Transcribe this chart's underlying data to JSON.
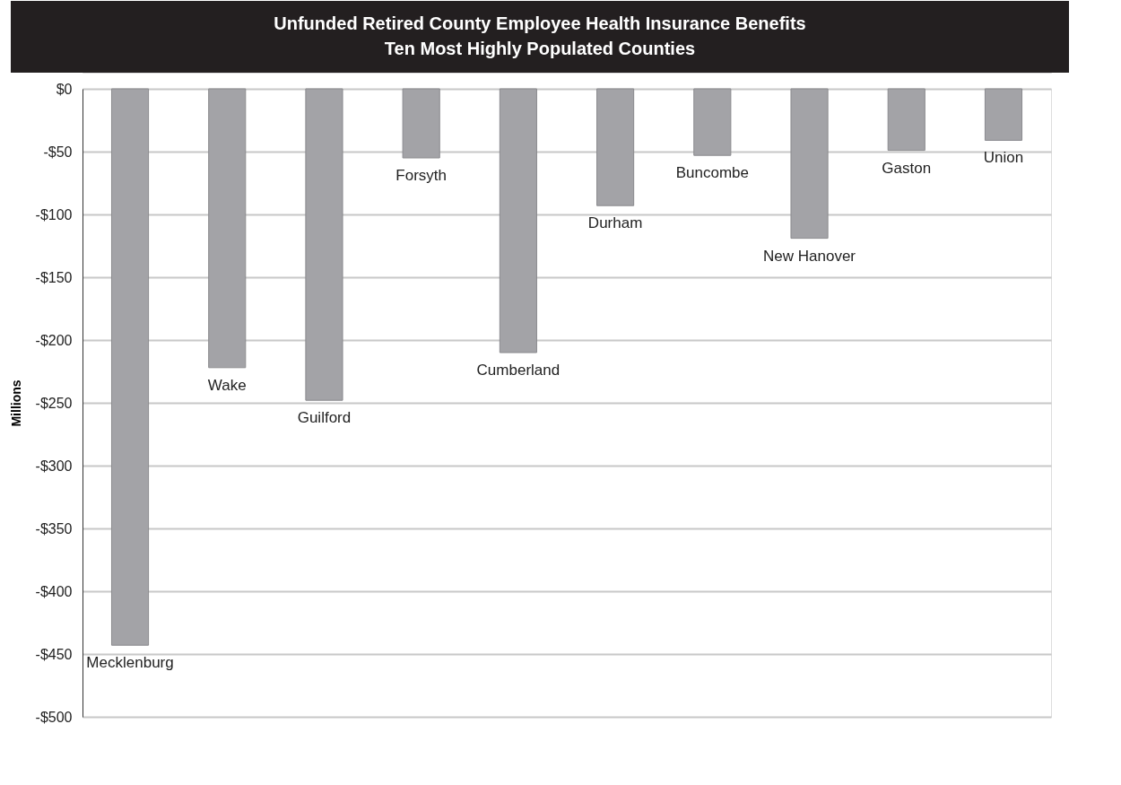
{
  "chart_data": {
    "type": "bar",
    "title": "Unfunded Retired County Employee Health Insurance Benefits",
    "subtitle": "Ten Most Highly Populated Counties",
    "ylabel": "Millions",
    "categories": [
      "Mecklenburg",
      "Wake",
      "Guilford",
      "Forsyth",
      "Cumberland",
      "Durham",
      "Buncombe",
      "New Hanover",
      "Gaston",
      "Union"
    ],
    "values": [
      -443,
      -222,
      -248,
      -55,
      -210,
      -93,
      -53,
      -119,
      -49,
      -41
    ],
    "color": "#a3a3a7",
    "ylim": [
      -500,
      0
    ],
    "yticks": [
      {
        "value": 0,
        "label": "$0"
      },
      {
        "value": -50,
        "label": "-$50"
      },
      {
        "value": -100,
        "label": "-$100"
      },
      {
        "value": -150,
        "label": "-$150"
      },
      {
        "value": -200,
        "label": "-$200"
      },
      {
        "value": -250,
        "label": "-$250"
      },
      {
        "value": -300,
        "label": "-$300"
      },
      {
        "value": -350,
        "label": "-$350"
      },
      {
        "value": -400,
        "label": "-$400"
      },
      {
        "value": -450,
        "label": "-$450"
      },
      {
        "value": -500,
        "label": "-$500"
      }
    ],
    "grid": "y",
    "tick_labels": "y"
  }
}
